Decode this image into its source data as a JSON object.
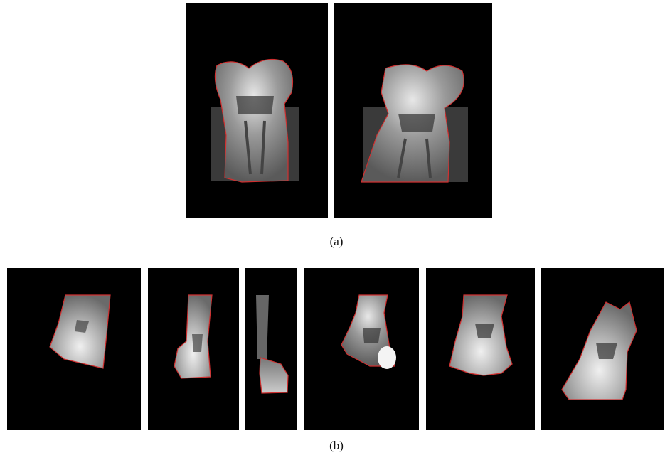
{
  "figure": {
    "subfigures": [
      {
        "label": "(a)"
      },
      {
        "label": "(b)"
      }
    ]
  }
}
